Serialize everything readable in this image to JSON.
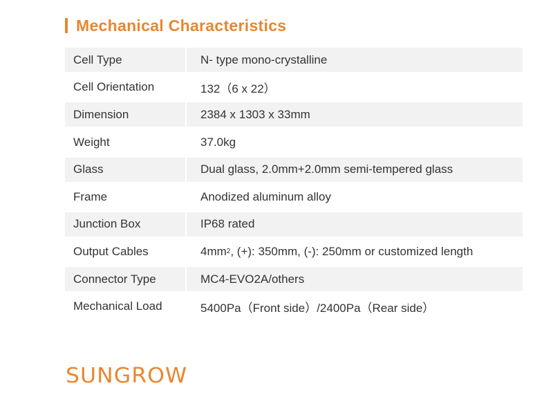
{
  "title": "Mechanical Characteristics",
  "colors": {
    "accent": "#e8872f",
    "row_shade": "#f2f2f2"
  },
  "rows": [
    {
      "label": "Cell Type",
      "value": "N- type mono-crystalline"
    },
    {
      "label": "Cell Orientation",
      "value": "132（6 x 22）"
    },
    {
      "label": "Dimension",
      "value": "2384 x 1303 x 33mm"
    },
    {
      "label": "Weight",
      "value": "37.0kg"
    },
    {
      "label": "Glass",
      "value": "Dual glass, 2.0mm+2.0mm semi-tempered glass"
    },
    {
      "label": "Frame",
      "value": "Anodized aluminum alloy"
    },
    {
      "label": "Junction Box",
      "value": "IP68 rated"
    },
    {
      "label": "Output Cables",
      "value_pre": "4mm",
      "value_sup": "2",
      "value_post": ", (+): 350mm, (-): 250mm or customized length"
    },
    {
      "label": "Connector Type",
      "value": "MC4-EVO2A/others"
    },
    {
      "label": "Mechanical Load",
      "value": "5400Pa（Front side）/2400Pa（Rear side）"
    }
  ],
  "logo": "SUNGROW"
}
